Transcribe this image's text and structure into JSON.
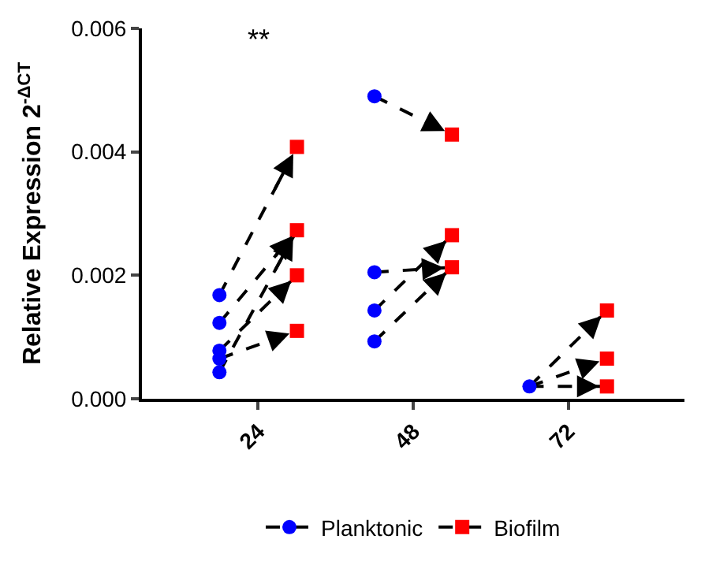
{
  "chart_data": {
    "type": "scatter",
    "ylabel": "Relative Expression 2$^{-ΔCT}$",
    "xlim": [
      6,
      90
    ],
    "xticks": [
      24,
      48,
      72
    ],
    "ylim": [
      0,
      0.006
    ],
    "yticks": [
      {
        "value": 0,
        "label": "0.000"
      },
      {
        "value": 0.002,
        "label": "0.002"
      },
      {
        "value": 0.004,
        "label": "0.004"
      },
      {
        "value": 0.006,
        "label": "0.006"
      }
    ],
    "series": [
      {
        "name": "Planktonic",
        "color": "#0000ff",
        "marker": "circle",
        "x": [
          18,
          18,
          18,
          18,
          18,
          42,
          42,
          42,
          42,
          66
        ],
        "values": [
          0.00168,
          0.00123,
          0.00078,
          0.00065,
          0.00043,
          0.0049,
          0.00205,
          0.00143,
          0.00093,
          0.0002
        ]
      },
      {
        "name": "Biofilm",
        "color": "#ff0000",
        "marker": "square",
        "x": [
          30,
          30,
          30,
          30,
          54,
          54,
          54,
          78,
          78,
          78
        ],
        "values": [
          0.00408,
          0.00273,
          0.002,
          0.0011,
          0.00428,
          0.00265,
          0.00213,
          0.00143,
          0.00065,
          0.0002
        ]
      },
      {
        "type": "line",
        "color": "#000000",
        "x": [
          18,
          30
        ],
        "values": [
          0.00168,
          0.00408
        ]
      },
      {
        "type": "line",
        "color": "#000000",
        "x": [
          18,
          30
        ],
        "values": [
          0.00123,
          0.00273
        ]
      },
      {
        "type": "line",
        "color": "#000000",
        "x": [
          18,
          30
        ],
        "values": [
          0.00078,
          0.002
        ]
      },
      {
        "type": "line",
        "color": "#000000",
        "x": [
          18,
          30
        ],
        "values": [
          0.00065,
          0.0011
        ]
      },
      {
        "type": "line",
        "color": "#000000",
        "x": [
          18,
          30
        ],
        "values": [
          0.00043,
          0.00273
        ]
      },
      {
        "type": "line",
        "color": "#000000",
        "x": [
          42,
          54
        ],
        "values": [
          0.0049,
          0.00428
        ]
      },
      {
        "type": "line",
        "color": "#000000",
        "x": [
          42,
          54
        ],
        "values": [
          0.00205,
          0.00213
        ]
      },
      {
        "type": "line",
        "color": "#000000",
        "x": [
          42,
          54
        ],
        "values": [
          0.00143,
          0.00265
        ]
      },
      {
        "type": "line",
        "color": "#000000",
        "x": [
          42,
          54
        ],
        "values": [
          0.00093,
          0.00213
        ]
      },
      {
        "type": "line",
        "color": "#000000",
        "x": [
          66,
          78
        ],
        "values": [
          0.0002,
          0.00143
        ]
      },
      {
        "type": "line",
        "color": "#000000",
        "x": [
          66,
          78
        ],
        "values": [
          0.0002,
          0.00065
        ]
      },
      {
        "type": "line",
        "color": "#000000",
        "x": [
          66,
          78
        ],
        "values": [
          0.0002,
          0.0002
        ]
      }
    ],
    "line_style": "dashed",
    "legend": "bottom",
    "annotations": [
      "**"
    ]
  }
}
